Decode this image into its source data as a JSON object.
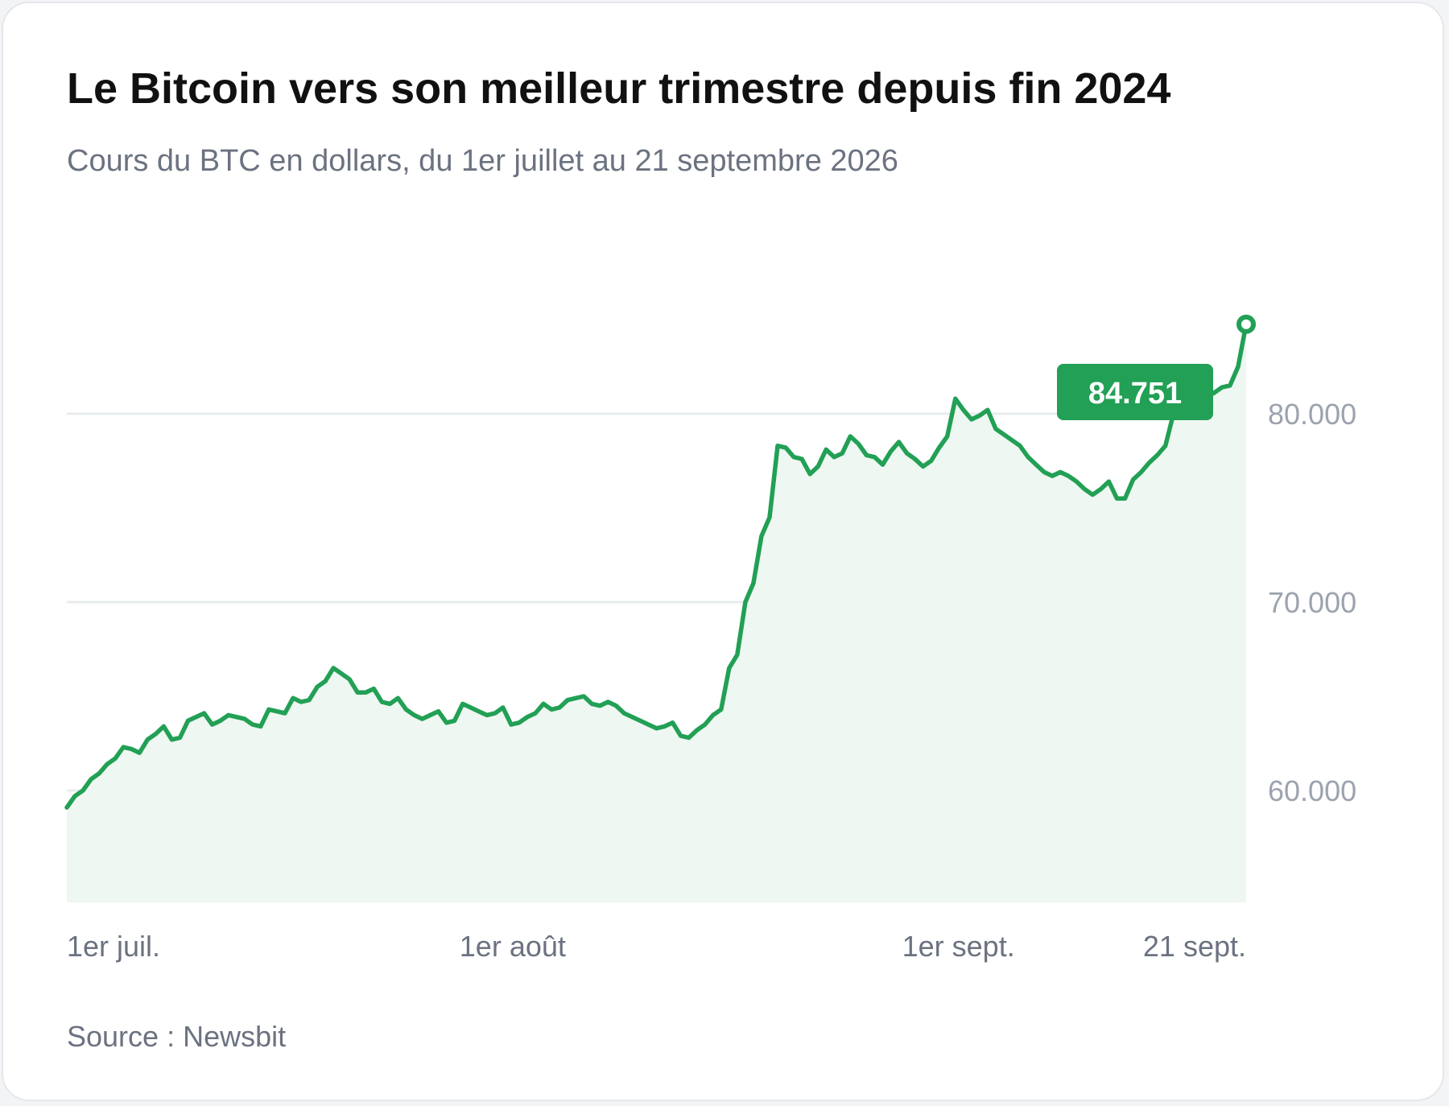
{
  "header": {
    "title": "Le Bitcoin vers son meilleur trimestre depuis fin 2024",
    "subtitle": "Cours du BTC en dollars, du 1er juillet au 21 septembre 2026"
  },
  "footer": {
    "source": "Source : Newsbit"
  },
  "colors": {
    "line": "#22a055",
    "area": "#eef7f1",
    "grid": "#e9ecef",
    "badge": "#22a055"
  },
  "chart_data": {
    "type": "area",
    "title": "Le Bitcoin vers son meilleur trimestre depuis fin 2024",
    "subtitle": "Cours du BTC en dollars, du 1er juillet au 21 septembre 2026",
    "ylim": [
      54000,
      88000
    ],
    "y_ticks": [
      {
        "value": 60000,
        "label": "60.000"
      },
      {
        "value": 70000,
        "label": "70.000"
      },
      {
        "value": 80000,
        "label": "80.000"
      }
    ],
    "x_tick_labels": [
      {
        "day": 1,
        "label": "1er juil."
      },
      {
        "day": 32,
        "label": "1er août"
      },
      {
        "day": 63,
        "label": "1er sept."
      },
      {
        "day": 83,
        "label": "21 sept."
      }
    ],
    "grid": true,
    "last_value_label": "84.751",
    "series": [
      {
        "values": [
          [
            1,
            59100
          ],
          [
            1.5,
            59700
          ],
          [
            2,
            60000
          ],
          [
            2.5,
            60600
          ],
          [
            3,
            60900
          ],
          [
            3.5,
            61400
          ],
          [
            4,
            61700
          ],
          [
            4.5,
            62300
          ],
          [
            5,
            62200
          ],
          [
            5.5,
            62000
          ],
          [
            6,
            62700
          ],
          [
            6.5,
            63000
          ],
          [
            7,
            63400
          ],
          [
            7.5,
            62700
          ],
          [
            8,
            62800
          ],
          [
            8.5,
            63700
          ],
          [
            9,
            63900
          ],
          [
            9.5,
            64100
          ],
          [
            10,
            63500
          ],
          [
            10.5,
            63700
          ],
          [
            11,
            64000
          ],
          [
            11.5,
            63900
          ],
          [
            12,
            63800
          ],
          [
            12.5,
            63500
          ],
          [
            13,
            63400
          ],
          [
            13.5,
            64300
          ],
          [
            14,
            64200
          ],
          [
            14.5,
            64100
          ],
          [
            15,
            64900
          ],
          [
            15.5,
            64700
          ],
          [
            16,
            64800
          ],
          [
            16.5,
            65500
          ],
          [
            17,
            65800
          ],
          [
            17.5,
            66500
          ],
          [
            18,
            66200
          ],
          [
            18.5,
            65900
          ],
          [
            19,
            65200
          ],
          [
            19.5,
            65200
          ],
          [
            20,
            65400
          ],
          [
            20.5,
            64700
          ],
          [
            21,
            64600
          ],
          [
            21.5,
            64900
          ],
          [
            22,
            64300
          ],
          [
            22.5,
            64000
          ],
          [
            23,
            63800
          ],
          [
            23.5,
            64000
          ],
          [
            24,
            64200
          ],
          [
            24.5,
            63600
          ],
          [
            25,
            63700
          ],
          [
            25.5,
            64600
          ],
          [
            26,
            64400
          ],
          [
            26.5,
            64200
          ],
          [
            27,
            64000
          ],
          [
            27.5,
            64100
          ],
          [
            28,
            64400
          ],
          [
            28.5,
            63500
          ],
          [
            29,
            63600
          ],
          [
            29.5,
            63900
          ],
          [
            30,
            64100
          ],
          [
            30.5,
            64600
          ],
          [
            31,
            64300
          ],
          [
            31.5,
            64400
          ],
          [
            32,
            64800
          ],
          [
            32.5,
            64900
          ],
          [
            33,
            65000
          ],
          [
            33.5,
            64600
          ],
          [
            34,
            64500
          ],
          [
            34.5,
            64700
          ],
          [
            35,
            64500
          ],
          [
            35.5,
            64100
          ],
          [
            36,
            63900
          ],
          [
            36.5,
            63700
          ],
          [
            37,
            63500
          ],
          [
            37.5,
            63300
          ],
          [
            38,
            63400
          ],
          [
            38.5,
            63600
          ],
          [
            39,
            62900
          ],
          [
            39.5,
            62800
          ],
          [
            40,
            63200
          ],
          [
            40.5,
            63500
          ],
          [
            41,
            64000
          ],
          [
            41.5,
            64300
          ],
          [
            42,
            66500
          ],
          [
            42.5,
            67200
          ],
          [
            43,
            70000
          ],
          [
            43.5,
            71000
          ],
          [
            44,
            73500
          ],
          [
            44.5,
            74500
          ],
          [
            45,
            78300
          ],
          [
            45.5,
            78200
          ],
          [
            46,
            77700
          ],
          [
            46.5,
            77600
          ],
          [
            47,
            76800
          ],
          [
            47.5,
            77200
          ],
          [
            48,
            78100
          ],
          [
            48.5,
            77700
          ],
          [
            49,
            77900
          ],
          [
            49.5,
            78800
          ],
          [
            50,
            78400
          ],
          [
            50.5,
            77800
          ],
          [
            51,
            77700
          ],
          [
            51.5,
            77300
          ],
          [
            52,
            78000
          ],
          [
            52.5,
            78500
          ],
          [
            53,
            77900
          ],
          [
            53.5,
            77600
          ],
          [
            54,
            77200
          ],
          [
            54.5,
            77500
          ],
          [
            55,
            78200
          ],
          [
            55.5,
            78800
          ],
          [
            56,
            80800
          ],
          [
            56.5,
            80200
          ],
          [
            57,
            79700
          ],
          [
            57.5,
            79900
          ],
          [
            58,
            80200
          ],
          [
            58.5,
            79200
          ],
          [
            59,
            78900
          ],
          [
            59.5,
            78600
          ],
          [
            60,
            78300
          ],
          [
            60.5,
            77700
          ],
          [
            61,
            77300
          ],
          [
            61.5,
            76900
          ],
          [
            62,
            76700
          ],
          [
            62.5,
            76900
          ],
          [
            63,
            76700
          ],
          [
            63.5,
            76400
          ],
          [
            64,
            76000
          ],
          [
            64.5,
            75700
          ],
          [
            65,
            76000
          ],
          [
            65.5,
            76400
          ],
          [
            66,
            75500
          ],
          [
            66.5,
            75500
          ],
          [
            67,
            76500
          ],
          [
            67.5,
            76900
          ],
          [
            68,
            77400
          ],
          [
            68.5,
            77800
          ],
          [
            69,
            78300
          ],
          [
            69.5,
            80000
          ],
          [
            70,
            80800
          ],
          [
            70.5,
            80900
          ],
          [
            71,
            81000
          ],
          [
            71.5,
            80900
          ],
          [
            72,
            81100
          ],
          [
            72.5,
            81400
          ],
          [
            73,
            81500
          ],
          [
            73.5,
            82500
          ],
          [
            74,
            84751
          ]
        ]
      }
    ]
  }
}
